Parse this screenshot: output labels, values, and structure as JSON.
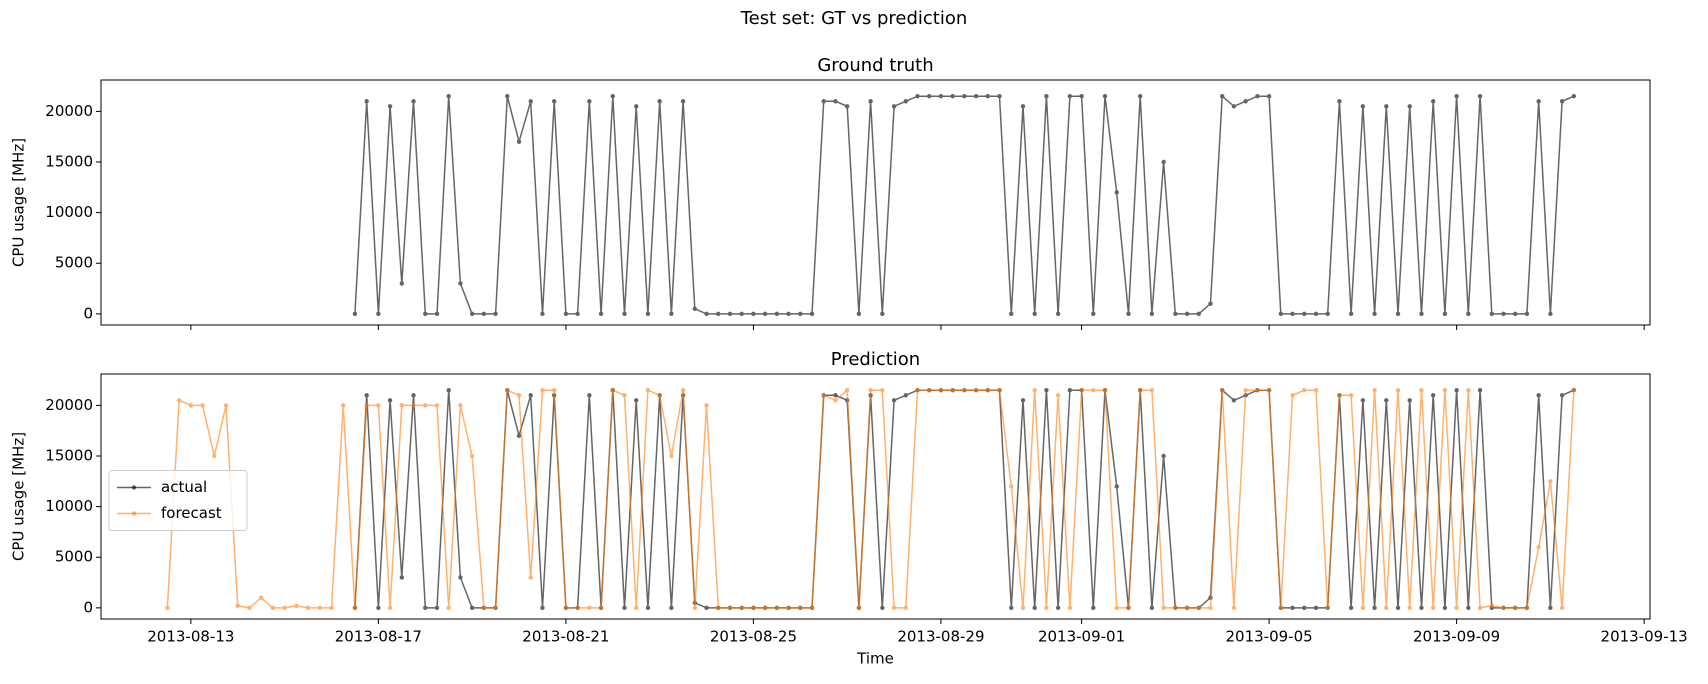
{
  "title": "Test set: GT vs prediction",
  "chart_data": [
    {
      "type": "line",
      "title": "Ground truth",
      "ylabel": "CPU usage [MHz]",
      "xlim": [
        "2013-08-11 02:00",
        "2013-09-13 03:00"
      ],
      "ylim": [
        -1100,
        23100
      ],
      "xticks": [
        "2013-08-13",
        "2013-08-17",
        "2013-08-21",
        "2013-08-25",
        "2013-08-29",
        "2013-09-01",
        "2013-09-05",
        "2013-09-09",
        "2013-09-13"
      ],
      "xticklabels": false,
      "yticks": [
        0,
        5000,
        10000,
        15000,
        20000
      ],
      "x": [
        "2013-08-12 12:00",
        "2013-08-12 18:00",
        "2013-08-13 00:00",
        "2013-08-13 06:00",
        "2013-08-13 12:00",
        "2013-08-13 18:00",
        "2013-08-14 00:00",
        "2013-08-14 06:00",
        "2013-08-14 12:00",
        "2013-08-14 18:00",
        "2013-08-15 00:00",
        "2013-08-15 06:00",
        "2013-08-15 12:00",
        "2013-08-15 18:00",
        "2013-08-16 00:00",
        "2013-08-16 06:00",
        "2013-08-16 12:00",
        "2013-08-16 18:00",
        "2013-08-17 00:00",
        "2013-08-17 06:00",
        "2013-08-17 12:00",
        "2013-08-17 18:00",
        "2013-08-18 00:00",
        "2013-08-18 06:00",
        "2013-08-18 12:00",
        "2013-08-18 18:00",
        "2013-08-19 00:00",
        "2013-08-19 06:00",
        "2013-08-19 12:00",
        "2013-08-19 18:00",
        "2013-08-20 00:00",
        "2013-08-20 06:00",
        "2013-08-20 12:00",
        "2013-08-20 18:00",
        "2013-08-21 00:00",
        "2013-08-21 06:00",
        "2013-08-21 12:00",
        "2013-08-21 18:00",
        "2013-08-22 00:00",
        "2013-08-22 06:00",
        "2013-08-22 12:00",
        "2013-08-22 18:00",
        "2013-08-23 00:00",
        "2013-08-23 06:00",
        "2013-08-23 12:00",
        "2013-08-23 18:00",
        "2013-08-24 00:00",
        "2013-08-24 06:00",
        "2013-08-24 12:00",
        "2013-08-24 18:00",
        "2013-08-25 00:00",
        "2013-08-25 06:00",
        "2013-08-25 12:00",
        "2013-08-25 18:00",
        "2013-08-26 00:00",
        "2013-08-26 06:00",
        "2013-08-26 12:00",
        "2013-08-26 18:00",
        "2013-08-27 00:00",
        "2013-08-27 06:00",
        "2013-08-27 12:00",
        "2013-08-27 18:00",
        "2013-08-28 00:00",
        "2013-08-28 06:00",
        "2013-08-28 12:00",
        "2013-08-28 18:00",
        "2013-08-29 00:00",
        "2013-08-29 06:00",
        "2013-08-29 12:00",
        "2013-08-29 18:00",
        "2013-08-30 00:00",
        "2013-08-30 06:00",
        "2013-08-30 12:00",
        "2013-08-30 18:00",
        "2013-08-31 00:00",
        "2013-08-31 06:00",
        "2013-08-31 12:00",
        "2013-08-31 18:00",
        "2013-09-01 00:00",
        "2013-09-01 06:00",
        "2013-09-01 12:00",
        "2013-09-01 18:00",
        "2013-09-02 00:00",
        "2013-09-02 06:00",
        "2013-09-02 12:00",
        "2013-09-02 18:00",
        "2013-09-03 00:00",
        "2013-09-03 06:00",
        "2013-09-03 12:00",
        "2013-09-03 18:00",
        "2013-09-04 00:00",
        "2013-09-04 06:00",
        "2013-09-04 12:00",
        "2013-09-04 18:00",
        "2013-09-05 00:00",
        "2013-09-05 06:00",
        "2013-09-05 12:00",
        "2013-09-05 18:00",
        "2013-09-06 00:00",
        "2013-09-06 06:00",
        "2013-09-06 12:00",
        "2013-09-06 18:00",
        "2013-09-07 00:00",
        "2013-09-07 06:00",
        "2013-09-07 12:00",
        "2013-09-07 18:00",
        "2013-09-08 00:00",
        "2013-09-08 06:00",
        "2013-09-08 12:00",
        "2013-09-08 18:00",
        "2013-09-09 00:00",
        "2013-09-09 06:00",
        "2013-09-09 12:00",
        "2013-09-09 18:00",
        "2013-09-10 00:00",
        "2013-09-10 06:00",
        "2013-09-10 12:00",
        "2013-09-10 18:00",
        "2013-09-11 00:00",
        "2013-09-11 06:00",
        "2013-09-11 12:00"
      ],
      "series": [
        {
          "color": "#000000",
          "values": [
            null,
            null,
            null,
            null,
            null,
            null,
            null,
            null,
            null,
            null,
            null,
            null,
            null,
            null,
            null,
            null,
            0,
            21000,
            0,
            20500,
            3000,
            21000,
            0,
            0,
            21500,
            3000,
            0,
            0,
            0,
            21500,
            17000,
            21000,
            0,
            21000,
            0,
            0,
            21000,
            0,
            21500,
            0,
            20500,
            0,
            21000,
            0,
            21000,
            500,
            0,
            0,
            0,
            0,
            0,
            0,
            0,
            0,
            0,
            0,
            21000,
            21000,
            20500,
            0,
            21000,
            0,
            20500,
            21000,
            21500,
            21500,
            21500,
            21500,
            21500,
            21500,
            21500,
            21500,
            0,
            20500,
            0,
            21500,
            0,
            21500,
            21500,
            0,
            21500,
            12000,
            0,
            21500,
            0,
            15000,
            0,
            0,
            0,
            1000,
            21500,
            20500,
            21000,
            21500,
            21500,
            0,
            0,
            0,
            0,
            0,
            21000,
            0,
            20500,
            0,
            20500,
            0,
            20500,
            0,
            21000,
            0,
            21500,
            0,
            21500,
            0,
            0,
            0,
            0,
            21000,
            0,
            21000,
            21500
          ]
        }
      ]
    },
    {
      "type": "line",
      "title": "Prediction",
      "ylabel": "CPU usage [MHz]",
      "xlabel": "Time",
      "legend": "center left",
      "xlim": [
        "2013-08-11 02:00",
        "2013-09-13 03:00"
      ],
      "ylim": [
        -1100,
        23100
      ],
      "xticks": [
        "2013-08-13",
        "2013-08-17",
        "2013-08-21",
        "2013-08-25",
        "2013-08-29",
        "2013-09-01",
        "2013-09-05",
        "2013-09-09",
        "2013-09-13"
      ],
      "xticklabels": true,
      "yticks": [
        0,
        5000,
        10000,
        15000,
        20000
      ],
      "x": [
        "2013-08-12 12:00",
        "2013-08-12 18:00",
        "2013-08-13 00:00",
        "2013-08-13 06:00",
        "2013-08-13 12:00",
        "2013-08-13 18:00",
        "2013-08-14 00:00",
        "2013-08-14 06:00",
        "2013-08-14 12:00",
        "2013-08-14 18:00",
        "2013-08-15 00:00",
        "2013-08-15 06:00",
        "2013-08-15 12:00",
        "2013-08-15 18:00",
        "2013-08-16 00:00",
        "2013-08-16 06:00",
        "2013-08-16 12:00",
        "2013-08-16 18:00",
        "2013-08-17 00:00",
        "2013-08-17 06:00",
        "2013-08-17 12:00",
        "2013-08-17 18:00",
        "2013-08-18 00:00",
        "2013-08-18 06:00",
        "2013-08-18 12:00",
        "2013-08-18 18:00",
        "2013-08-19 00:00",
        "2013-08-19 06:00",
        "2013-08-19 12:00",
        "2013-08-19 18:00",
        "2013-08-20 00:00",
        "2013-08-20 06:00",
        "2013-08-20 12:00",
        "2013-08-20 18:00",
        "2013-08-21 00:00",
        "2013-08-21 06:00",
        "2013-08-21 12:00",
        "2013-08-21 18:00",
        "2013-08-22 00:00",
        "2013-08-22 06:00",
        "2013-08-22 12:00",
        "2013-08-22 18:00",
        "2013-08-23 00:00",
        "2013-08-23 06:00",
        "2013-08-23 12:00",
        "2013-08-23 18:00",
        "2013-08-24 00:00",
        "2013-08-24 06:00",
        "2013-08-24 12:00",
        "2013-08-24 18:00",
        "2013-08-25 00:00",
        "2013-08-25 06:00",
        "2013-08-25 12:00",
        "2013-08-25 18:00",
        "2013-08-26 00:00",
        "2013-08-26 06:00",
        "2013-08-26 12:00",
        "2013-08-26 18:00",
        "2013-08-27 00:00",
        "2013-08-27 06:00",
        "2013-08-27 12:00",
        "2013-08-27 18:00",
        "2013-08-28 00:00",
        "2013-08-28 06:00",
        "2013-08-28 12:00",
        "2013-08-28 18:00",
        "2013-08-29 00:00",
        "2013-08-29 06:00",
        "2013-08-29 12:00",
        "2013-08-29 18:00",
        "2013-08-30 00:00",
        "2013-08-30 06:00",
        "2013-08-30 12:00",
        "2013-08-30 18:00",
        "2013-08-31 00:00",
        "2013-08-31 06:00",
        "2013-08-31 12:00",
        "2013-08-31 18:00",
        "2013-09-01 00:00",
        "2013-09-01 06:00",
        "2013-09-01 12:00",
        "2013-09-01 18:00",
        "2013-09-02 00:00",
        "2013-09-02 06:00",
        "2013-09-02 12:00",
        "2013-09-02 18:00",
        "2013-09-03 00:00",
        "2013-09-03 06:00",
        "2013-09-03 12:00",
        "2013-09-03 18:00",
        "2013-09-04 00:00",
        "2013-09-04 06:00",
        "2013-09-04 12:00",
        "2013-09-04 18:00",
        "2013-09-05 00:00",
        "2013-09-05 06:00",
        "2013-09-05 12:00",
        "2013-09-05 18:00",
        "2013-09-06 00:00",
        "2013-09-06 06:00",
        "2013-09-06 12:00",
        "2013-09-06 18:00",
        "2013-09-07 00:00",
        "2013-09-07 06:00",
        "2013-09-07 12:00",
        "2013-09-07 18:00",
        "2013-09-08 00:00",
        "2013-09-08 06:00",
        "2013-09-08 12:00",
        "2013-09-08 18:00",
        "2013-09-09 00:00",
        "2013-09-09 06:00",
        "2013-09-09 12:00",
        "2013-09-09 18:00",
        "2013-09-10 00:00",
        "2013-09-10 06:00",
        "2013-09-10 12:00",
        "2013-09-10 18:00",
        "2013-09-11 00:00",
        "2013-09-11 06:00",
        "2013-09-11 12:00"
      ],
      "series": [
        {
          "name": "actual",
          "color": "#000000",
          "values": [
            null,
            null,
            null,
            null,
            null,
            null,
            null,
            null,
            null,
            null,
            null,
            null,
            null,
            null,
            null,
            null,
            0,
            21000,
            0,
            20500,
            3000,
            21000,
            0,
            0,
            21500,
            3000,
            0,
            0,
            0,
            21500,
            17000,
            21000,
            0,
            21000,
            0,
            0,
            21000,
            0,
            21500,
            0,
            20500,
            0,
            21000,
            0,
            21000,
            500,
            0,
            0,
            0,
            0,
            0,
            0,
            0,
            0,
            0,
            0,
            21000,
            21000,
            20500,
            0,
            21000,
            0,
            20500,
            21000,
            21500,
            21500,
            21500,
            21500,
            21500,
            21500,
            21500,
            21500,
            0,
            20500,
            0,
            21500,
            0,
            21500,
            21500,
            0,
            21500,
            12000,
            0,
            21500,
            0,
            15000,
            0,
            0,
            0,
            1000,
            21500,
            20500,
            21000,
            21500,
            21500,
            0,
            0,
            0,
            0,
            0,
            21000,
            0,
            20500,
            0,
            20500,
            0,
            20500,
            0,
            21000,
            0,
            21500,
            0,
            21500,
            0,
            0,
            0,
            0,
            21000,
            0,
            21000,
            21500
          ]
        },
        {
          "name": "forecast",
          "color": "#ff7f0e",
          "values": [
            0,
            20500,
            20000,
            20000,
            15000,
            20000,
            200,
            0,
            1000,
            0,
            0,
            200,
            0,
            0,
            0,
            20000,
            0,
            20000,
            20000,
            0,
            20000,
            20000,
            20000,
            20000,
            0,
            20000,
            15000,
            0,
            0,
            21500,
            21000,
            3000,
            21500,
            21500,
            0,
            0,
            0,
            0,
            21500,
            21000,
            0,
            21500,
            21000,
            15000,
            21500,
            0,
            20000,
            0,
            0,
            0,
            0,
            0,
            0,
            0,
            0,
            0,
            21000,
            20500,
            21500,
            0,
            21500,
            21500,
            0,
            0,
            21500,
            21500,
            21500,
            21500,
            21500,
            21500,
            21500,
            21500,
            12000,
            0,
            21500,
            0,
            21000,
            0,
            21500,
            21500,
            21500,
            0,
            0,
            21500,
            21500,
            0,
            0,
            0,
            0,
            0,
            21500,
            0,
            21500,
            21500,
            21500,
            0,
            21000,
            21500,
            21500,
            0,
            21000,
            21000,
            0,
            21500,
            0,
            21500,
            0,
            21500,
            0,
            21500,
            0,
            21500,
            0,
            200,
            0,
            0,
            0,
            6000,
            12500,
            0,
            21500
          ]
        }
      ]
    }
  ]
}
